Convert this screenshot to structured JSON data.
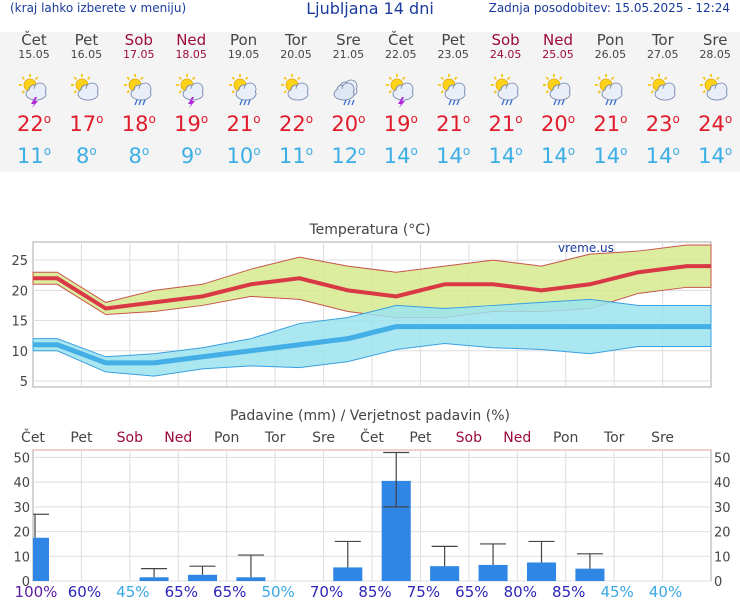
{
  "header": {
    "left_note": "(kraj lahko izberete v meniju)",
    "title": "Ljubljana 14 dni",
    "updated": "Zadnja posodobitev: 15.05.2025 - 12:24"
  },
  "days": [
    {
      "name": "Čet",
      "date": "15.05",
      "weekend": false,
      "icon": "sun-cloud-thunder-icon",
      "tmax": "22",
      "tmin": "11"
    },
    {
      "name": "Pet",
      "date": "16.05",
      "weekend": false,
      "icon": "sun-cloud-icon",
      "tmax": "17",
      "tmin": "8"
    },
    {
      "name": "Sob",
      "date": "17.05",
      "weekend": true,
      "icon": "sun-cloud-rain-icon",
      "tmax": "18",
      "tmin": "8"
    },
    {
      "name": "Ned",
      "date": "18.05",
      "weekend": true,
      "icon": "sun-cloud-thunder-icon",
      "tmax": "19",
      "tmin": "9"
    },
    {
      "name": "Pon",
      "date": "19.05",
      "weekend": false,
      "icon": "sun-cloud-rain-icon",
      "tmax": "21",
      "tmin": "10"
    },
    {
      "name": "Tor",
      "date": "20.05",
      "weekend": false,
      "icon": "sun-cloud-icon",
      "tmax": "22",
      "tmin": "11"
    },
    {
      "name": "Sre",
      "date": "21.05",
      "weekend": false,
      "icon": "cloud-rain-icon",
      "tmax": "20",
      "tmin": "12"
    },
    {
      "name": "Čet",
      "date": "22.05",
      "weekend": false,
      "icon": "sun-cloud-thunder-icon",
      "tmax": "19",
      "tmin": "14"
    },
    {
      "name": "Pet",
      "date": "23.05",
      "weekend": false,
      "icon": "sun-cloud-rain-icon",
      "tmax": "21",
      "tmin": "14"
    },
    {
      "name": "Sob",
      "date": "24.05",
      "weekend": true,
      "icon": "sun-cloud-rain-icon",
      "tmax": "21",
      "tmin": "14"
    },
    {
      "name": "Ned",
      "date": "25.05",
      "weekend": true,
      "icon": "sun-cloud-rain-icon",
      "tmax": "20",
      "tmin": "14"
    },
    {
      "name": "Pon",
      "date": "26.05",
      "weekend": false,
      "icon": "sun-cloud-rain-icon",
      "tmax": "21",
      "tmin": "14"
    },
    {
      "name": "Tor",
      "date": "27.05",
      "weekend": false,
      "icon": "sun-cloud-icon",
      "tmax": "23",
      "tmin": "14"
    },
    {
      "name": "Sre",
      "date": "28.05",
      "weekend": false,
      "icon": "sun-cloud-icon",
      "tmax": "24",
      "tmin": "14"
    }
  ],
  "colors": {
    "weekend": "#9c0a3e",
    "max": "#e01b2b",
    "min": "#3caee6",
    "link": "#1a3a9e",
    "band_max": "#d6ea8e",
    "band_min": "#9be3ef",
    "line_max": "#d93845",
    "line_min": "#44aee6",
    "bar": "#2f86e4"
  },
  "chart_data": [
    {
      "type": "line",
      "title": "Temperatura (°C)",
      "watermark": "vreme.us",
      "ylim": [
        4,
        28
      ],
      "yticks": [
        5,
        10,
        15,
        20,
        25
      ],
      "x": [
        1,
        2,
        3,
        4,
        5,
        6,
        7,
        8,
        9,
        10,
        11,
        12,
        13,
        14
      ],
      "series": [
        {
          "name": "max",
          "values": [
            22,
            17,
            18,
            19,
            21,
            22,
            20,
            19,
            21,
            21,
            20,
            21,
            23,
            24
          ]
        },
        {
          "name": "max_upper",
          "values": [
            23,
            18,
            20,
            21,
            23.5,
            25.5,
            24,
            23,
            24,
            25,
            24,
            26,
            26.5,
            27.5
          ]
        },
        {
          "name": "max_lower",
          "values": [
            21,
            16,
            16.5,
            17.5,
            19,
            18.5,
            16.5,
            15.5,
            15.5,
            16.5,
            16.5,
            17,
            19.5,
            20.5
          ]
        },
        {
          "name": "min",
          "values": [
            11,
            8,
            8,
            9,
            10,
            11,
            12,
            14,
            14,
            14,
            14,
            14,
            14,
            14
          ]
        },
        {
          "name": "min_upper",
          "values": [
            12,
            9,
            9.5,
            10.5,
            12,
            14.5,
            15.5,
            17.5,
            17,
            17.5,
            18,
            18.5,
            17.5,
            17.5
          ]
        },
        {
          "name": "min_lower",
          "values": [
            10,
            6.5,
            5.8,
            7,
            7.5,
            7.2,
            8.2,
            10.2,
            11.2,
            10.5,
            10.2,
            9.5,
            10.7,
            10.7
          ]
        }
      ]
    },
    {
      "type": "bar",
      "title": "Padavine (mm) / Verjetnost padavin (%)",
      "categories": [
        "Čet",
        "Pet",
        "Sob",
        "Ned",
        "Pon",
        "Tor",
        "Sre",
        "Čet",
        "Pet",
        "Sob",
        "Ned",
        "Pon",
        "Tor",
        "Sre"
      ],
      "weekend": [
        false,
        false,
        true,
        true,
        false,
        false,
        false,
        false,
        false,
        true,
        true,
        false,
        false,
        false
      ],
      "ylim": [
        0,
        53
      ],
      "yticks": [
        0,
        10,
        20,
        30,
        40,
        50
      ],
      "values": [
        17.5,
        0,
        1.5,
        2.5,
        1.5,
        0,
        5.5,
        40.5,
        6,
        6.5,
        7.5,
        5,
        0,
        0
      ],
      "err_high": [
        27,
        0,
        5,
        6,
        10.5,
        0,
        16,
        52,
        14,
        15,
        16,
        11,
        0,
        0
      ],
      "err_low": [
        0,
        0,
        0,
        0,
        0,
        0,
        0,
        30,
        0,
        0,
        0,
        0,
        0,
        0
      ],
      "probabilities": [
        "100%",
        "60%",
        "45%",
        "65%",
        "65%",
        "50%",
        "70%",
        "85%",
        "75%",
        "65%",
        "80%",
        "85%",
        "45%",
        "40%"
      ]
    }
  ]
}
